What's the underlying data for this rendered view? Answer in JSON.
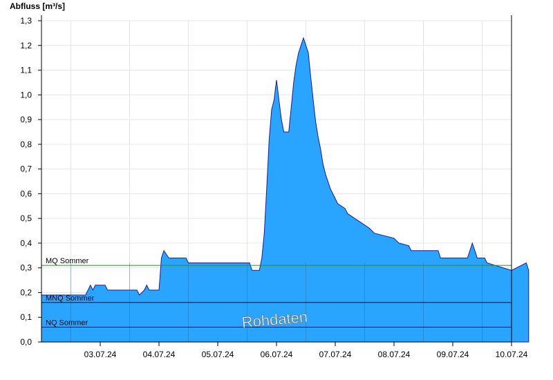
{
  "chart_data": {
    "type": "area",
    "ylabel": "Abfluss [m³/s]",
    "ylim": [
      0,
      1.3
    ],
    "yticks": [
      "0,0",
      "0,1",
      "0,2",
      "0,3",
      "0,4",
      "0,5",
      "0,6",
      "0,7",
      "0,8",
      "0,9",
      "1,0",
      "1,1",
      "1,2",
      "1,3"
    ],
    "x_range": [
      "2024-07-02T12:00",
      "2024-07-10T12:00"
    ],
    "x_ticks": [
      "03.07.24",
      "04.07.24",
      "05.07.24",
      "06.07.24",
      "07.07.24",
      "08.07.24",
      "09.07.24",
      "10.07.24"
    ],
    "grid": true,
    "watermark": "Rohdaten",
    "reference_lines": [
      {
        "name": "MQ Sommer",
        "value": 0.31,
        "color": "#2e8b2e"
      },
      {
        "name": "MNQ Sommer",
        "value": 0.16,
        "color": "#000000"
      },
      {
        "name": "NQ Sommer",
        "value": 0.06,
        "color": "#000000"
      }
    ],
    "series": [
      {
        "color": "#2aa5ff",
        "edge_color": "#1a1aa0",
        "points": [
          [
            "2024-07-02T12:00",
            0.19
          ],
          [
            "2024-07-03T06:00",
            0.19
          ],
          [
            "2024-07-03T07:00",
            0.21
          ],
          [
            "2024-07-03T08:00",
            0.23
          ],
          [
            "2024-07-03T09:00",
            0.21
          ],
          [
            "2024-07-03T10:00",
            0.23
          ],
          [
            "2024-07-03T14:00",
            0.23
          ],
          [
            "2024-07-03T15:00",
            0.21
          ],
          [
            "2024-07-04T03:00",
            0.21
          ],
          [
            "2024-07-04T04:00",
            0.19
          ],
          [
            "2024-07-04T06:00",
            0.21
          ],
          [
            "2024-07-04T07:00",
            0.23
          ],
          [
            "2024-07-04T08:00",
            0.21
          ],
          [
            "2024-07-04T12:00",
            0.21
          ],
          [
            "2024-07-04T13:00",
            0.34
          ],
          [
            "2024-07-04T14:00",
            0.37
          ],
          [
            "2024-07-04T16:00",
            0.34
          ],
          [
            "2024-07-04T23:00",
            0.34
          ],
          [
            "2024-07-05T00:00",
            0.32
          ],
          [
            "2024-07-06T01:00",
            0.32
          ],
          [
            "2024-07-06T02:00",
            0.29
          ],
          [
            "2024-07-06T05:00",
            0.29
          ],
          [
            "2024-07-06T06:00",
            0.34
          ],
          [
            "2024-07-06T07:00",
            0.44
          ],
          [
            "2024-07-06T08:00",
            0.62
          ],
          [
            "2024-07-06T09:00",
            0.82
          ],
          [
            "2024-07-06T10:00",
            0.94
          ],
          [
            "2024-07-06T11:00",
            0.98
          ],
          [
            "2024-07-06T12:00",
            1.06
          ],
          [
            "2024-07-06T13:00",
            0.98
          ],
          [
            "2024-07-06T14:00",
            0.9
          ],
          [
            "2024-07-06T15:00",
            0.85
          ],
          [
            "2024-07-06T17:00",
            0.85
          ],
          [
            "2024-07-06T18:00",
            0.95
          ],
          [
            "2024-07-06T19:00",
            1.05
          ],
          [
            "2024-07-06T20:00",
            1.12
          ],
          [
            "2024-07-06T21:00",
            1.17
          ],
          [
            "2024-07-06T22:00",
            1.2
          ],
          [
            "2024-07-06T23:00",
            1.23
          ],
          [
            "2024-07-07T00:00",
            1.2
          ],
          [
            "2024-07-07T01:00",
            1.17
          ],
          [
            "2024-07-07T02:00",
            1.07
          ],
          [
            "2024-07-07T03:00",
            0.98
          ],
          [
            "2024-07-07T04:00",
            0.89
          ],
          [
            "2024-07-07T05:00",
            0.83
          ],
          [
            "2024-07-07T06:00",
            0.78
          ],
          [
            "2024-07-07T07:00",
            0.72
          ],
          [
            "2024-07-07T08:00",
            0.68
          ],
          [
            "2024-07-07T09:00",
            0.65
          ],
          [
            "2024-07-07T10:00",
            0.62
          ],
          [
            "2024-07-07T11:00",
            0.6
          ],
          [
            "2024-07-07T12:00",
            0.58
          ],
          [
            "2024-07-07T13:00",
            0.56
          ],
          [
            "2024-07-07T16:00",
            0.54
          ],
          [
            "2024-07-07T17:00",
            0.52
          ],
          [
            "2024-07-07T20:00",
            0.5
          ],
          [
            "2024-07-07T23:00",
            0.48
          ],
          [
            "2024-07-08T02:00",
            0.46
          ],
          [
            "2024-07-08T04:00",
            0.44
          ],
          [
            "2024-07-08T12:00",
            0.42
          ],
          [
            "2024-07-08T14:00",
            0.4
          ],
          [
            "2024-07-08T18:00",
            0.39
          ],
          [
            "2024-07-08T19:00",
            0.37
          ],
          [
            "2024-07-09T06:00",
            0.37
          ],
          [
            "2024-07-09T07:00",
            0.34
          ],
          [
            "2024-07-09T18:00",
            0.34
          ],
          [
            "2024-07-09T19:00",
            0.37
          ],
          [
            "2024-07-09T20:00",
            0.4
          ],
          [
            "2024-07-09T21:00",
            0.37
          ],
          [
            "2024-07-09T22:00",
            0.34
          ],
          [
            "2024-07-10T01:00",
            0.34
          ],
          [
            "2024-07-10T02:00",
            0.32
          ],
          [
            "2024-07-10T18:00",
            0.32
          ],
          [
            "2024-07-10T19:00",
            0.29
          ],
          [
            "2024-07-10T12:00",
            0.29
          ]
        ]
      }
    ]
  }
}
